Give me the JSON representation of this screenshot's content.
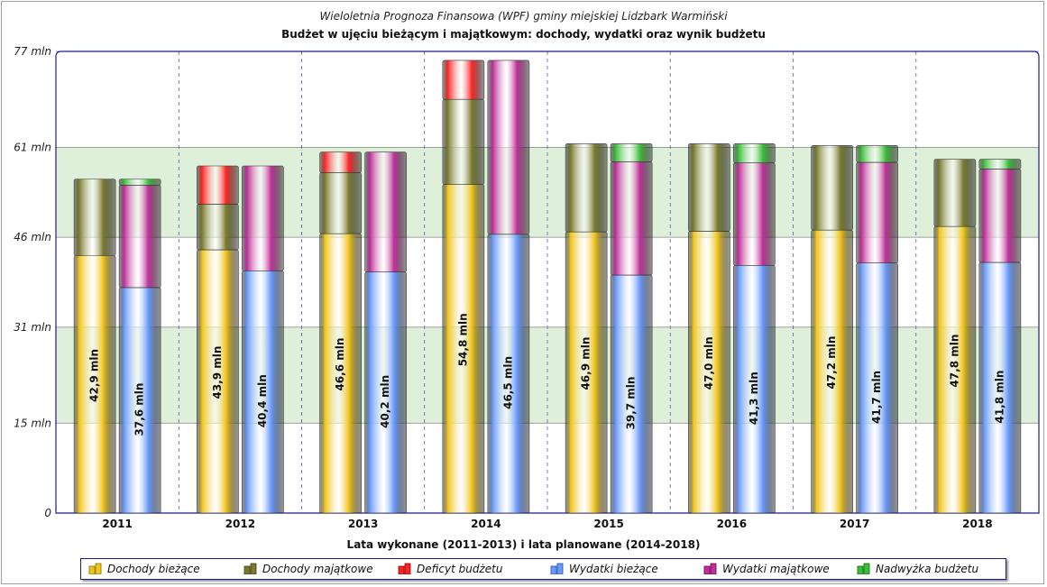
{
  "subtitle": "Wieloletnia Prognoza Finansowa (WPF) gminy miejskiej Lidzbark Warmiński",
  "title": "Budżet w ujęciu bieżącym i majątkowym: dochody, wydatki oraz wynik budżetu",
  "colors": {
    "dochody_biezace": "#f0c419",
    "dochody_majatkowe": "#7a7a2e",
    "deficyt": "#ff2424",
    "wydatki_biezace": "#6a9bff",
    "wydatki_majatkowe": "#c0309a",
    "nadwyzka": "#3cbf3c",
    "band": "#dff0da",
    "axis": "#1b1b8f"
  },
  "chart_data": {
    "type": "bar",
    "stacked": true,
    "grouped": true,
    "title": "Budżet w ujęciu bieżącym i majątkowym: dochody, wydatki oraz wynik budżetu",
    "subtitle": "Wieloletnia Prognoza Finansowa (WPF) gminy miejskiej Lidzbark Warmiński",
    "xlabel": "Lata wykonane (2011-2013) i lata planowane (2014-2018)",
    "ylabel": "",
    "ylim": [
      0,
      77
    ],
    "yticks": [
      0,
      15,
      31,
      46,
      61,
      77
    ],
    "ytick_labels": [
      "0",
      "15 mln",
      "31 mln",
      "46 mln",
      "61 mln",
      "77 mln"
    ],
    "categories": [
      "2011",
      "2012",
      "2013",
      "2014",
      "2015",
      "2016",
      "2017",
      "2018"
    ],
    "income_stack": [
      {
        "name": "Dochody bieżące",
        "values": [
          42.9,
          43.9,
          46.6,
          54.8,
          46.9,
          47.0,
          47.2,
          47.8
        ]
      },
      {
        "name": "Dochody majątkowe",
        "values": [
          12.8,
          7.6,
          10.2,
          14.2,
          14.7,
          14.6,
          14.1,
          11.2
        ]
      },
      {
        "name": "Deficyt budżetu",
        "values": [
          0,
          6.4,
          3.4,
          6.5,
          0,
          0,
          0,
          0
        ]
      }
    ],
    "expense_stack": [
      {
        "name": "Wydatki bieżące",
        "values": [
          37.6,
          40.4,
          40.2,
          46.5,
          39.7,
          41.3,
          41.7,
          41.8
        ]
      },
      {
        "name": "Wydatki majątkowe",
        "values": [
          17.1,
          17.5,
          20.0,
          29.0,
          18.9,
          17.1,
          16.8,
          15.6
        ]
      },
      {
        "name": "Nadwyżka budżetu",
        "values": [
          1.0,
          0,
          0,
          0,
          3.0,
          3.2,
          2.8,
          1.6
        ]
      }
    ],
    "data_labels_income": [
      "42,9 mln",
      "43,9 mln",
      "46,6 mln",
      "54,8 mln",
      "46,9 mln",
      "47,0 mln",
      "47,2 mln",
      "47,8 mln"
    ],
    "data_labels_expense": [
      "37,6 mln",
      "40,4 mln",
      "40,2 mln",
      "46,5 mln",
      "39,7 mln",
      "41,3 mln",
      "41,7 mln",
      "41,8 mln"
    ],
    "legend_position": "bottom"
  },
  "legend": [
    {
      "label": "Dochody bieżące",
      "color": "#f0c419"
    },
    {
      "label": "Dochody majątkowe",
      "color": "#7a7a2e"
    },
    {
      "label": "Deficyt budżetu",
      "color": "#ff2424"
    },
    {
      "label": "Wydatki bieżące",
      "color": "#6a9bff"
    },
    {
      "label": "Wydatki majątkowe",
      "color": "#c0309a"
    },
    {
      "label": "Nadwyżka budżetu",
      "color": "#3cbf3c"
    }
  ]
}
